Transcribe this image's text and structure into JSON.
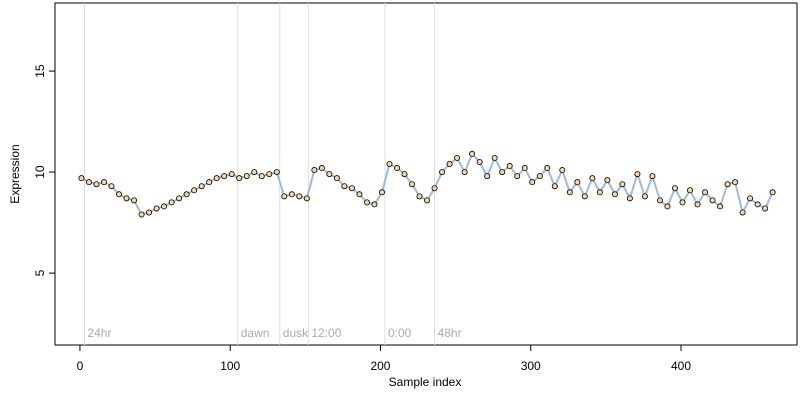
{
  "chart_data": {
    "type": "scatter",
    "xlabel": "Sample index",
    "ylabel": "Expression",
    "xlim": [
      -16.6,
      477.2
    ],
    "ylim": [
      1.44,
      18.37
    ],
    "xticks": [
      0,
      100,
      200,
      300,
      400
    ],
    "yticks": [
      5,
      10,
      15
    ],
    "point_color": "#f3d7a6",
    "line_color": "#9fb8dc",
    "marker_line_color": "#dddddd",
    "annotations": [
      {
        "x": 3,
        "label": "24hr"
      },
      {
        "x": 105,
        "label": "dawn"
      },
      {
        "x": 133,
        "label": "dusk"
      },
      {
        "x": 152,
        "label": "12:00"
      },
      {
        "x": 203,
        "label": "0:00"
      },
      {
        "x": 236,
        "label": "48hr"
      }
    ],
    "x": [
      1,
      6,
      11,
      16,
      21,
      26,
      31,
      36,
      41,
      46,
      51,
      56,
      61,
      66,
      71,
      76,
      81,
      86,
      91,
      96,
      101,
      106,
      111,
      116,
      121,
      126,
      131,
      136,
      141,
      146,
      151,
      156,
      161,
      166,
      171,
      176,
      181,
      186,
      191,
      196,
      201,
      206,
      211,
      216,
      221,
      226,
      231,
      236,
      241,
      246,
      251,
      256,
      261,
      266,
      271,
      276,
      281,
      286,
      291,
      296,
      301,
      306,
      311,
      316,
      321,
      326,
      331,
      336,
      341,
      346,
      351,
      356,
      361,
      366,
      371,
      376,
      381,
      386,
      391,
      396,
      401,
      406,
      411,
      416,
      421,
      426,
      431,
      436,
      441,
      446,
      451,
      456,
      461
    ],
    "y": [
      9.7,
      9.5,
      9.4,
      9.5,
      9.3,
      8.9,
      8.7,
      8.6,
      7.9,
      8.0,
      8.2,
      8.3,
      8.5,
      8.7,
      8.9,
      9.1,
      9.3,
      9.5,
      9.7,
      9.8,
      9.9,
      9.7,
      9.8,
      10.0,
      9.8,
      9.9,
      10.0,
      8.8,
      8.9,
      8.8,
      8.7,
      10.1,
      10.2,
      9.9,
      9.7,
      9.3,
      9.2,
      8.9,
      8.5,
      8.4,
      9.0,
      10.4,
      10.2,
      9.9,
      9.4,
      8.8,
      8.6,
      9.2,
      10.0,
      10.4,
      10.7,
      10.0,
      10.9,
      10.5,
      9.8,
      10.7,
      10.0,
      10.3,
      9.8,
      10.2,
      9.5,
      9.8,
      10.2,
      9.3,
      10.1,
      9.0,
      9.5,
      8.8,
      9.7,
      9.0,
      9.6,
      8.9,
      9.4,
      8.7,
      9.9,
      8.8,
      9.8,
      8.6,
      8.3,
      9.2,
      8.5,
      9.1,
      8.4,
      9.0,
      8.6,
      8.3,
      9.4,
      9.5,
      8.0,
      8.7,
      8.4,
      8.2,
      9.0
    ]
  }
}
